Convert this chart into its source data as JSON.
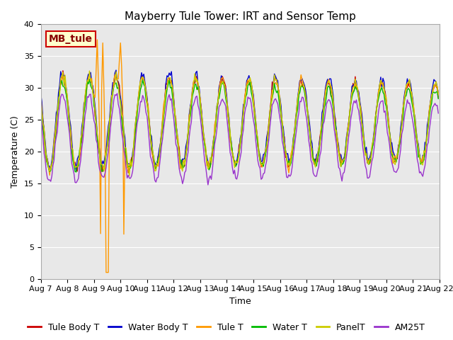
{
  "title": "Mayberry Tule Tower: IRT and Sensor Temp",
  "xlabel": "Time",
  "ylabel": "Temperature (C)",
  "ylim": [
    0,
    40
  ],
  "x_tick_labels": [
    "Aug 7",
    "Aug 8",
    "Aug 9",
    "Aug 10",
    "Aug 11",
    "Aug 12",
    "Aug 13",
    "Aug 14",
    "Aug 15",
    "Aug 16",
    "Aug 17",
    "Aug 18",
    "Aug 19",
    "Aug 20",
    "Aug 21",
    "Aug 22"
  ],
  "series_colors": {
    "Tule Body T": "#cc0000",
    "Water Body T": "#0000cc",
    "Tule T": "#ff9900",
    "Water T": "#00bb00",
    "PanelT": "#cccc00",
    "AM25T": "#9933cc"
  },
  "legend_label": "MB_tule",
  "legend_bg": "#ffffcc",
  "legend_border": "#cc0000",
  "plot_bg": "#e8e8e8",
  "fig_bg": "#ffffff",
  "grid_color": "#ffffff",
  "title_fontsize": 11,
  "axis_fontsize": 9,
  "tick_fontsize": 8,
  "legend_fontsize": 9
}
